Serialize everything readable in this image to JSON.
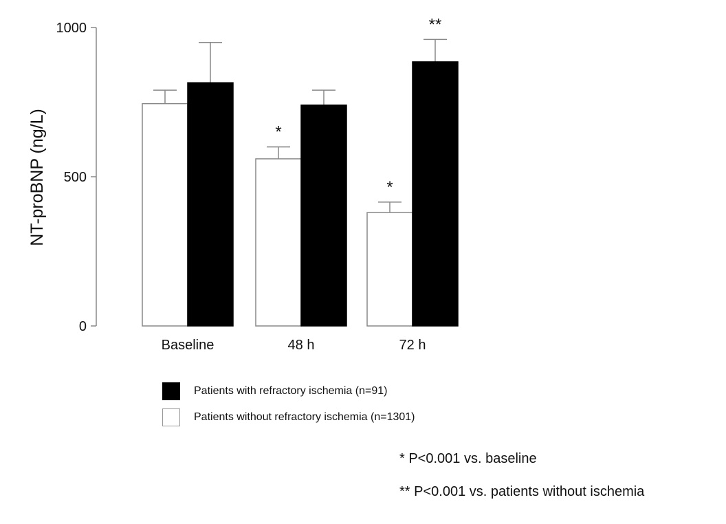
{
  "chart_data": {
    "type": "bar",
    "title": "",
    "xlabel": "",
    "ylabel": "NT-proBNP (ng/L)",
    "ylim": [
      0,
      1000
    ],
    "yticks": [
      "0",
      "500",
      "1000"
    ],
    "categories": [
      "Baseline",
      "48 h",
      "72 h"
    ],
    "series": [
      {
        "name": "Patients without refractory ischemia (n=1301)",
        "fill": "#ffffff",
        "stroke": "#888888",
        "values": [
          745,
          560,
          380
        ],
        "error_upper": [
          790,
          600,
          415
        ],
        "annotations": [
          "",
          "*",
          "*"
        ]
      },
      {
        "name": "Patients with refractory ischemia (n=91)",
        "fill": "#000000",
        "stroke": "#000000",
        "values": [
          815,
          740,
          885
        ],
        "error_upper": [
          950,
          790,
          960
        ],
        "annotations": [
          "",
          "",
          "**"
        ]
      }
    ],
    "legend": [
      {
        "label": "Patients with refractory ischemia (n=91)",
        "fill": "#000000"
      },
      {
        "label": "Patients without refractory ischemia (n=1301)",
        "fill": "#ffffff"
      }
    ],
    "notes": [
      "* P<0.001 vs. baseline",
      "** P<0.001 vs. patients without ischemia"
    ]
  }
}
